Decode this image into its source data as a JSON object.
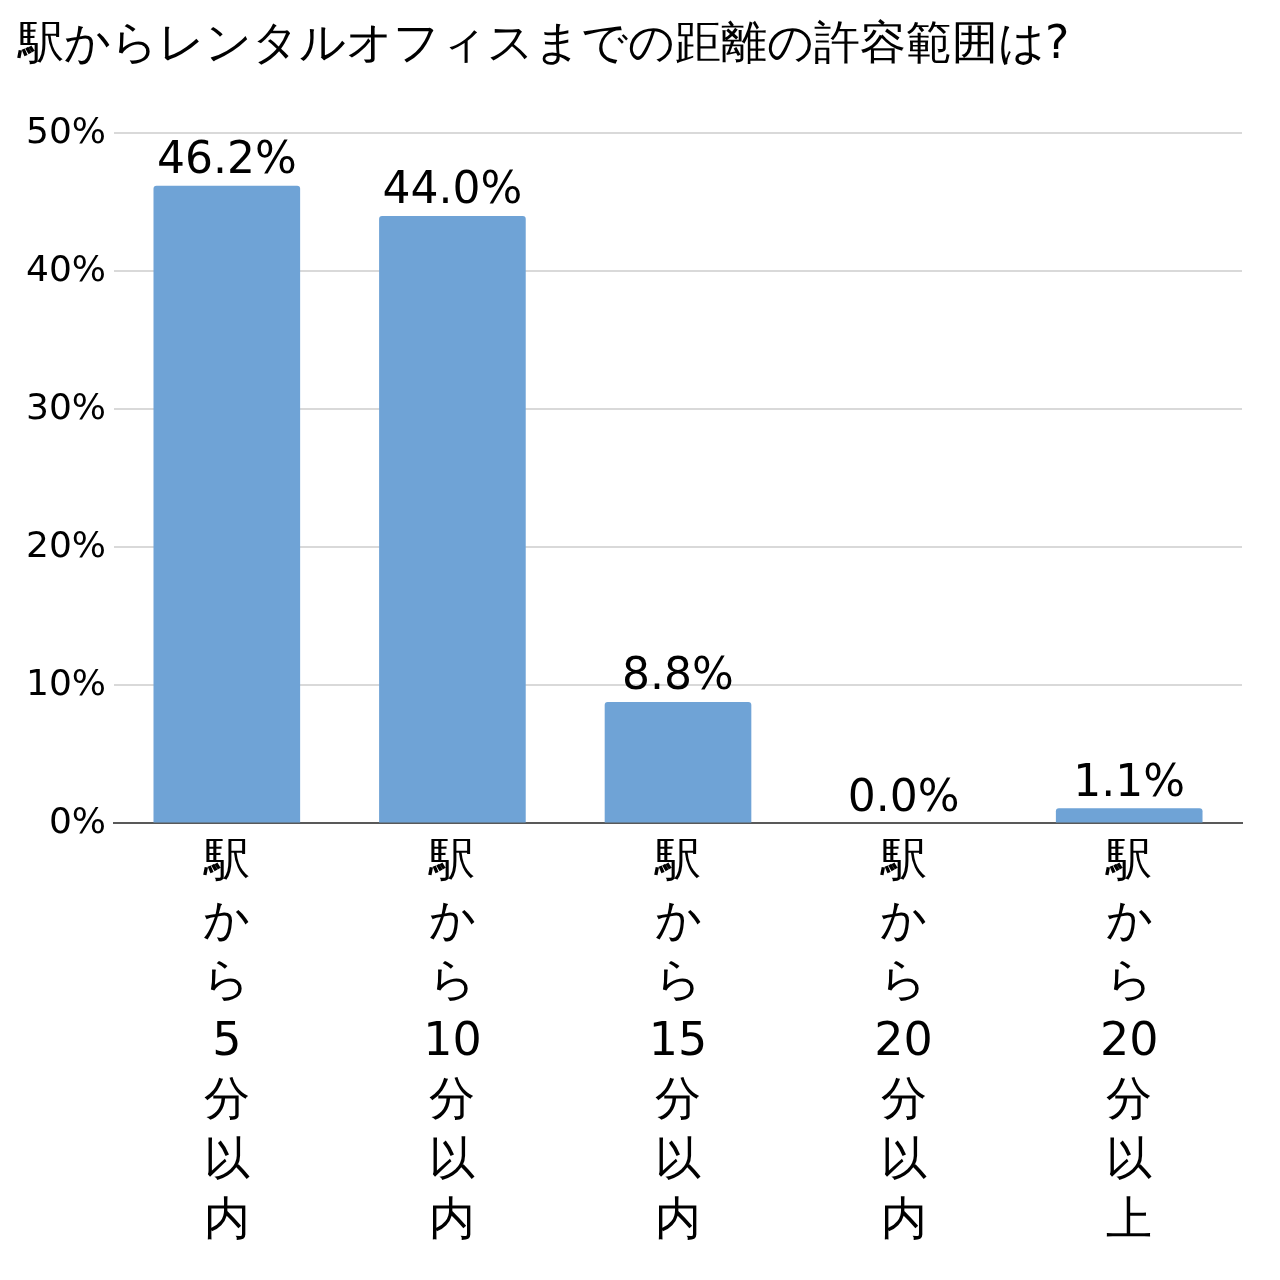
{
  "chart_data": {
    "type": "bar",
    "title": "駅からレンタルオフィスまでの距離の許容範囲は?",
    "categories": [
      "駅から5分以内",
      "駅から10分以内",
      "駅から15分以内",
      "駅から20分以内",
      "駅から20分以上"
    ],
    "values": [
      46.2,
      44.0,
      8.8,
      0.0,
      1.1
    ],
    "value_labels": [
      "46.2%",
      "44.0%",
      "8.8%",
      "0.0%",
      "1.1%"
    ],
    "color": "#6fa3d6",
    "ylim": [
      0,
      50
    ],
    "yticks": [
      {
        "value": 0,
        "label": "0%"
      },
      {
        "value": 10,
        "label": "10%"
      },
      {
        "value": 20,
        "label": "20%"
      },
      {
        "value": 30,
        "label": "30%"
      },
      {
        "value": 40,
        "label": "40%"
      },
      {
        "value": 50,
        "label": "50%"
      }
    ],
    "grid": "y",
    "legend": false
  }
}
